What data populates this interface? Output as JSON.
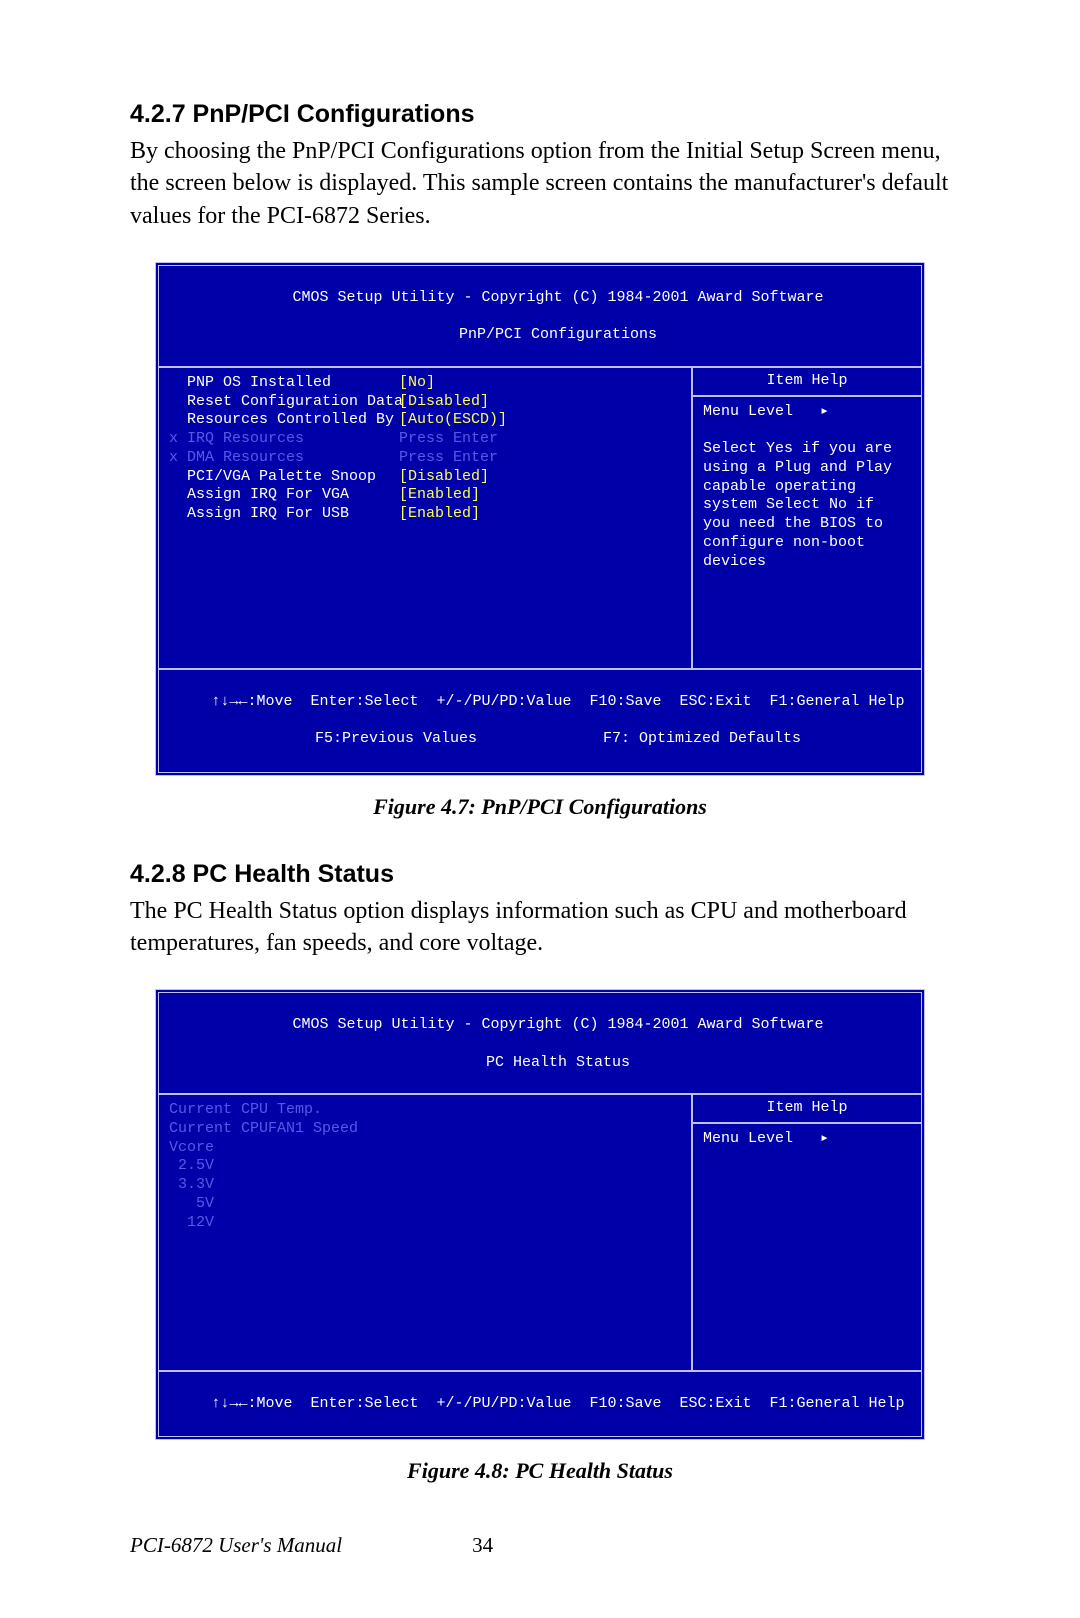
{
  "section1": {
    "heading": "4.2.7 PnP/PCI Configurations",
    "body": "By choosing the PnP/PCI Configurations option from the Initial Setup Screen menu, the screen below is displayed. This sample screen contains the manufacturer's default values for the PCI-6872 Series."
  },
  "bios1": {
    "title_line1": "CMOS Setup Utility - Copyright (C) 1984-2001 Award Software",
    "title_line2": "PnP/PCI Configurations",
    "rows": [
      {
        "label": "  PNP OS Installed",
        "value": "[No]",
        "dim": false,
        "valcolor": "yel"
      },
      {
        "label": "  Reset Configuration Data",
        "value": "[Disabled]",
        "dim": false,
        "valcolor": "yel"
      },
      {
        "label": "",
        "value": "",
        "dim": false,
        "valcolor": ""
      },
      {
        "label": "  Resources Controlled By",
        "value": "[Auto(ESCD)]",
        "dim": false,
        "valcolor": "yel"
      },
      {
        "label": "x IRQ Resources",
        "value": "Press Enter",
        "dim": true,
        "valcolor": "dim"
      },
      {
        "label": "x DMA Resources",
        "value": "Press Enter",
        "dim": true,
        "valcolor": "dim"
      },
      {
        "label": "",
        "value": "",
        "dim": false,
        "valcolor": ""
      },
      {
        "label": "  PCI/VGA Palette Snoop",
        "value": "[Disabled]",
        "dim": false,
        "valcolor": "yel"
      },
      {
        "label": "  Assign IRQ For VGA",
        "value": "[Enabled]",
        "dim": false,
        "valcolor": "yel"
      },
      {
        "label": "  Assign IRQ For USB",
        "value": "[Enabled]",
        "dim": false,
        "valcolor": "yel"
      }
    ],
    "help_title": "Item Help",
    "help_body": "Menu Level   ▸\n\nSelect Yes if you are\nusing a Plug and Play\ncapable operating\nsystem Select No if\nyou need the BIOS to\nconfigure non-boot\ndevices",
    "foot1": "↑↓→←:Move  Enter:Select  +/-/PU/PD:Value  F10:Save  ESC:Exit  F1:General Help",
    "foot2": "F5:Previous Values              F7: Optimized Defaults",
    "body_height": 300
  },
  "caption1": "Figure 4.7: PnP/PCI Configurations",
  "section2": {
    "heading": "4.2.8 PC Health Status",
    "body": "The PC Health Status option displays information such as CPU and motherboard temperatures, fan speeds, and core voltage."
  },
  "bios2": {
    "title_line1": "CMOS Setup Utility - Copyright (C) 1984-2001 Award Software",
    "title_line2": "PC Health Status",
    "rows": [
      {
        "label": "Current CPU Temp.",
        "value": "",
        "dim": true,
        "valcolor": ""
      },
      {
        "label": "Current CPUFAN1 Speed",
        "value": "",
        "dim": true,
        "valcolor": ""
      },
      {
        "label": "Vcore",
        "value": "",
        "dim": true,
        "valcolor": ""
      },
      {
        "label": " 2.5V",
        "value": "",
        "dim": true,
        "valcolor": ""
      },
      {
        "label": " 3.3V",
        "value": "",
        "dim": true,
        "valcolor": ""
      },
      {
        "label": "   5V",
        "value": "",
        "dim": true,
        "valcolor": ""
      },
      {
        "label": "  12V",
        "value": "",
        "dim": true,
        "valcolor": ""
      }
    ],
    "help_title": "Item Help",
    "help_body": "Menu Level   ▸",
    "foot1": "↑↓→←:Move  Enter:Select  +/-/PU/PD:Value  F10:Save  ESC:Exit  F1:General Help",
    "foot2": "",
    "body_height": 275
  },
  "caption2": "Figure 4.8: PC Health Status",
  "footer": {
    "manual": "PCI-6872 User's Manual",
    "page": "34"
  },
  "colors": {
    "bios_bg": "#0000a8",
    "bios_border": "#c0c0f0",
    "bios_text": "#ffffff",
    "bios_highlight": "#ffff55",
    "bios_dim": "#5858e8"
  }
}
